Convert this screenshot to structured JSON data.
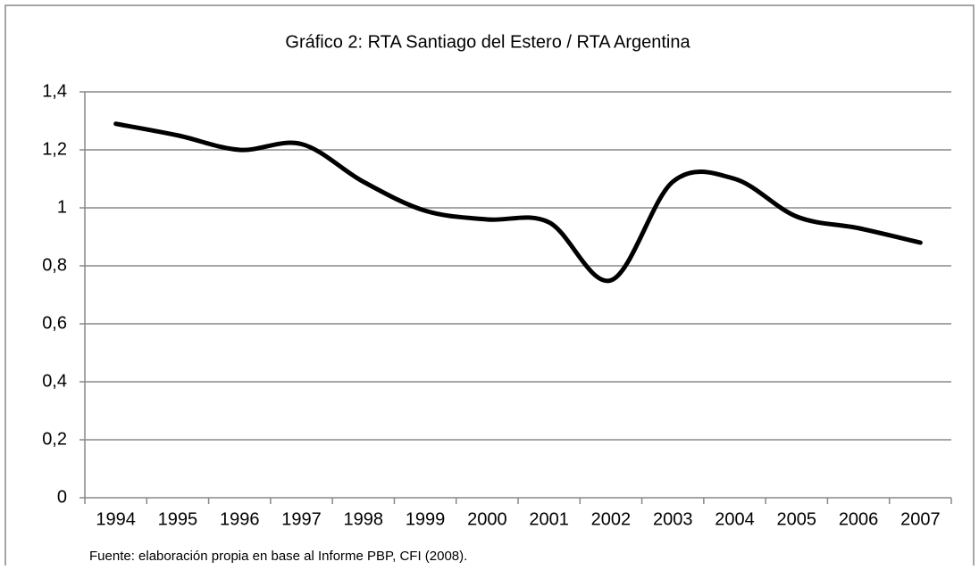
{
  "chart_data": {
    "type": "line",
    "title": "Gráfico 2: RTA Santiago del Estero / RTA Argentina",
    "categories": [
      "1994",
      "1995",
      "1996",
      "1997",
      "1998",
      "1999",
      "2000",
      "2001",
      "2002",
      "2003",
      "2004",
      "2005",
      "2006",
      "2007"
    ],
    "series": [
      {
        "name": "RTA Santiago del Estero / RTA Argentina",
        "color": "#000000",
        "values": [
          1.29,
          1.25,
          1.2,
          1.22,
          1.09,
          0.99,
          0.96,
          0.95,
          0.75,
          1.09,
          1.1,
          0.97,
          0.93,
          0.88
        ]
      }
    ],
    "ylim": [
      0,
      1.4
    ],
    "yticks": [
      0,
      {
        "value": 0.2,
        "label": "0,2"
      },
      {
        "value": 0.4,
        "label": "0,4"
      },
      {
        "value": 0.6,
        "label": "0,6"
      },
      {
        "value": 0.8,
        "label": "0,8"
      },
      1,
      {
        "value": 1.2,
        "label": "1,2"
      },
      {
        "value": 1.4,
        "label": "1,4"
      }
    ],
    "grid": true,
    "source": "Fuente: elaboración propia en base al Informe PBP, CFI (2008)."
  }
}
